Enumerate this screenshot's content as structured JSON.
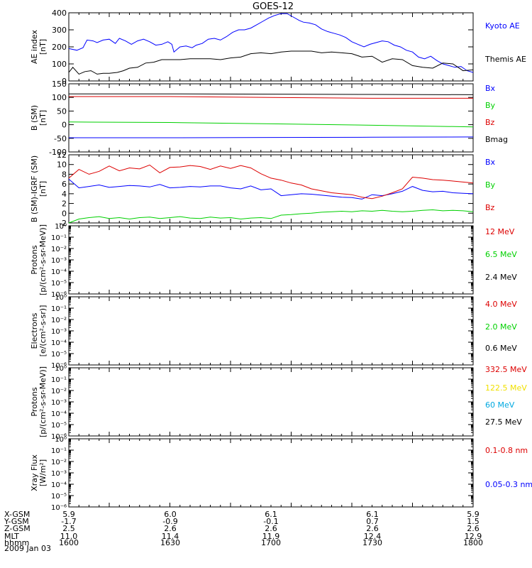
{
  "title": "GOES-12",
  "date_label": "2009 Jan 03",
  "colors": {
    "black": "#000000",
    "blue": "#0000ff",
    "red": "#dd0000",
    "green": "#00d000",
    "yellow": "#f0e000",
    "cyan": "#00a8e0"
  },
  "ephemeris": {
    "rows": [
      {
        "label": "X-GSM",
        "values": [
          "5.9",
          "6.0",
          "6.1",
          "6.1",
          "5.9"
        ]
      },
      {
        "label": "Y-GSM",
        "values": [
          "-1.7",
          "-0.9",
          "-0.1",
          "0.7",
          "1.5"
        ]
      },
      {
        "label": "Z-GSM",
        "values": [
          "2.5",
          "2.6",
          "2.6",
          "2.6",
          "2.6"
        ]
      },
      {
        "label": "MLT",
        "values": [
          "11.0",
          "11.4",
          "11.9",
          "12.4",
          "12.9"
        ]
      },
      {
        "label": "hhmm",
        "values": [
          "1600",
          "1630",
          "1700",
          "1730",
          "1800"
        ]
      }
    ]
  },
  "chart_data": [
    {
      "type": "line",
      "ylabel": [
        "AE index",
        "[nT]"
      ],
      "ylim": [
        0,
        400
      ],
      "yticks": [
        "0",
        "100",
        "200",
        "300",
        "400"
      ],
      "xlim": [
        1600,
        1800
      ],
      "series": [
        {
          "name": "Kyoto AE",
          "color": "blue",
          "x": [
            1600,
            1604,
            1607,
            1609,
            1612,
            1614,
            1617,
            1620,
            1623,
            1625,
            1628,
            1631,
            1634,
            1637,
            1640,
            1643,
            1646,
            1649,
            1651,
            1652,
            1655,
            1658,
            1661,
            1663,
            1666,
            1669,
            1672,
            1675,
            1678,
            1681,
            1684,
            1687,
            1690,
            1693,
            1696,
            1699,
            1702,
            1705,
            1708,
            1711,
            1714,
            1716,
            1719,
            1722,
            1725,
            1728,
            1731,
            1734,
            1737,
            1740,
            1743,
            1746,
            1749,
            1752,
            1755,
            1758,
            1761,
            1764,
            1767,
            1770,
            1773,
            1776,
            1779,
            1782,
            1785,
            1788,
            1791,
            1794,
            1797,
            1800
          ],
          "values": [
            190,
            180,
            195,
            240,
            235,
            225,
            240,
            245,
            220,
            250,
            235,
            215,
            235,
            245,
            230,
            210,
            215,
            230,
            215,
            170,
            200,
            205,
            195,
            210,
            220,
            245,
            250,
            240,
            260,
            285,
            300,
            300,
            310,
            330,
            350,
            370,
            385,
            395,
            395,
            375,
            355,
            345,
            340,
            330,
            305,
            290,
            280,
            270,
            255,
            230,
            215,
            200,
            215,
            225,
            235,
            230,
            210,
            200,
            180,
            170,
            140,
            130,
            145,
            120,
            100,
            90,
            80,
            85,
            60,
            50
          ]
        },
        {
          "name": "Themis AE",
          "color": "black",
          "x": [
            1600,
            1602,
            1605,
            1608,
            1611,
            1614,
            1617,
            1620,
            1624,
            1627,
            1630,
            1634,
            1638,
            1642,
            1646,
            1650,
            1655,
            1660,
            1665,
            1670,
            1675,
            1680,
            1685,
            1690,
            1695,
            1700,
            1705,
            1710,
            1715,
            1720,
            1725,
            1730,
            1735,
            1740,
            1745,
            1750,
            1755,
            1760,
            1765,
            1770,
            1775,
            1780,
            1785,
            1790,
            1795,
            1800
          ],
          "values": [
            50,
            80,
            40,
            55,
            60,
            40,
            45,
            45,
            50,
            60,
            75,
            80,
            105,
            110,
            125,
            125,
            125,
            130,
            130,
            130,
            125,
            135,
            140,
            160,
            165,
            160,
            170,
            175,
            175,
            175,
            165,
            170,
            165,
            160,
            140,
            145,
            110,
            130,
            125,
            90,
            80,
            75,
            105,
            100,
            60,
            65
          ]
        }
      ]
    },
    {
      "type": "line",
      "ylabel": [
        "B (SM)",
        "[nT]"
      ],
      "ylim": [
        -100,
        150
      ],
      "yticks": [
        "-100",
        "-50",
        "0",
        "50",
        "100",
        "150"
      ],
      "xlim": [
        1600,
        1800
      ],
      "series": [
        {
          "name": "Bx",
          "color": "blue",
          "x": [
            1600,
            1650,
            1700,
            1750,
            1800
          ],
          "values": [
            -48,
            -48,
            -47,
            -46,
            -45
          ]
        },
        {
          "name": "By",
          "color": "green",
          "x": [
            1600,
            1650,
            1700,
            1750,
            1800
          ],
          "values": [
            10,
            8,
            3,
            -2,
            -8
          ]
        },
        {
          "name": "Bz",
          "color": "red",
          "x": [
            1600,
            1650,
            1700,
            1750,
            1800
          ],
          "values": [
            103,
            103,
            100,
            97,
            97
          ]
        },
        {
          "name": "Bmag",
          "color": "black",
          "x": [
            1600,
            1650,
            1700,
            1750,
            1800
          ],
          "values": [
            113,
            113,
            112,
            111,
            110
          ]
        }
      ]
    },
    {
      "type": "line",
      "ylabel": [
        "B (SM)-IGRF (SM)",
        "[nT]"
      ],
      "ylim": [
        -2,
        12
      ],
      "yticks": [
        "-2",
        "0",
        "2",
        "4",
        "6",
        "8",
        "10",
        "12"
      ],
      "xlim": [
        1600,
        1800
      ],
      "series": [
        {
          "name": "Bx",
          "color": "blue",
          "x": [
            1600,
            1605,
            1610,
            1615,
            1620,
            1625,
            1630,
            1635,
            1640,
            1645,
            1650,
            1655,
            1660,
            1665,
            1670,
            1675,
            1680,
            1685,
            1690,
            1695,
            1700,
            1705,
            1710,
            1715,
            1720,
            1725,
            1730,
            1735,
            1740,
            1745,
            1750,
            1755,
            1760,
            1765,
            1770,
            1775,
            1780,
            1785,
            1790,
            1795,
            1800
          ],
          "values": [
            7,
            5.2,
            5.5,
            5.8,
            5.3,
            5.5,
            5.7,
            5.6,
            5.4,
            5.9,
            5.2,
            5.3,
            5.5,
            5.4,
            5.6,
            5.6,
            5.2,
            5.0,
            5.6,
            4.8,
            5.0,
            3.6,
            3.8,
            4.0,
            3.9,
            3.7,
            3.5,
            3.3,
            3.2,
            2.9,
            3.8,
            3.6,
            4.0,
            4.5,
            5.5,
            4.7,
            4.4,
            4.5,
            4.2,
            4.1,
            4.0
          ]
        },
        {
          "name": "By",
          "color": "green",
          "x": [
            1600,
            1605,
            1610,
            1615,
            1620,
            1625,
            1630,
            1635,
            1640,
            1645,
            1650,
            1655,
            1660,
            1665,
            1670,
            1675,
            1680,
            1685,
            1690,
            1695,
            1700,
            1705,
            1710,
            1715,
            1720,
            1725,
            1730,
            1735,
            1740,
            1745,
            1750,
            1755,
            1760,
            1765,
            1770,
            1775,
            1780,
            1785,
            1790,
            1795,
            1800
          ],
          "values": [
            -2,
            -1.2,
            -0.9,
            -0.7,
            -1.1,
            -0.9,
            -1.2,
            -0.9,
            -0.8,
            -1.1,
            -0.9,
            -0.7,
            -1.0,
            -1.1,
            -0.8,
            -1.0,
            -0.9,
            -1.2,
            -1.0,
            -0.9,
            -1.1,
            -0.4,
            -0.3,
            -0.1,
            0,
            0.2,
            0.3,
            0.4,
            0.3,
            0.5,
            0.4,
            0.6,
            0.4,
            0.3,
            0.4,
            0.6,
            0.7,
            0.5,
            0.6,
            0.5,
            0.3
          ]
        },
        {
          "name": "Bz",
          "color": "red",
          "x": [
            1600,
            1605,
            1610,
            1615,
            1620,
            1625,
            1630,
            1635,
            1640,
            1645,
            1650,
            1655,
            1660,
            1665,
            1670,
            1675,
            1680,
            1685,
            1690,
            1695,
            1700,
            1705,
            1710,
            1715,
            1720,
            1725,
            1730,
            1735,
            1740,
            1745,
            1750,
            1755,
            1760,
            1765,
            1770,
            1775,
            1780,
            1785,
            1790,
            1795,
            1800
          ],
          "values": [
            7.2,
            9.0,
            8.0,
            8.6,
            9.7,
            8.7,
            9.3,
            9.1,
            9.9,
            8.3,
            9.4,
            9.5,
            9.8,
            9.6,
            9.0,
            9.7,
            9.2,
            9.8,
            9.3,
            8.1,
            7.2,
            6.8,
            6.2,
            5.8,
            5.0,
            4.6,
            4.2,
            4.0,
            3.8,
            3.3,
            3.0,
            3.5,
            4.2,
            5.0,
            7.4,
            7.2,
            6.9,
            6.8,
            6.6,
            6.4,
            6.2
          ]
        }
      ]
    },
    {
      "type": "line",
      "ylabel": [
        "Protons",
        "[p/(cm²-s-sr-MeV)]"
      ],
      "scale": "log",
      "ylim": [
        1e-06,
        1
      ],
      "yticks": [
        "10⁰",
        "10⁻¹",
        "10⁻²",
        "10⁻³",
        "10⁻⁴",
        "10⁻⁵",
        "10⁻⁶"
      ],
      "xlim": [
        1600,
        1800
      ],
      "series": [
        {
          "name": "12 MeV",
          "color": "red",
          "x": [],
          "values": []
        },
        {
          "name": "6.5 MeV",
          "color": "green",
          "x": [],
          "values": []
        },
        {
          "name": "2.4 MeV",
          "color": "black",
          "x": [],
          "values": []
        }
      ]
    },
    {
      "type": "line",
      "ylabel": [
        "Electrons",
        "[e/(cm²-s-sr)]"
      ],
      "scale": "log",
      "ylim": [
        1e-06,
        1
      ],
      "yticks": [
        "10⁰",
        "10⁻¹",
        "10⁻²",
        "10⁻³",
        "10⁻⁴",
        "10⁻⁵",
        "10⁻⁶"
      ],
      "xlim": [
        1600,
        1800
      ],
      "series": [
        {
          "name": "4.0 MeV",
          "color": "red",
          "x": [],
          "values": []
        },
        {
          "name": "2.0 MeV",
          "color": "green",
          "x": [],
          "values": []
        },
        {
          "name": "0.6 MeV",
          "color": "black",
          "x": [],
          "values": []
        }
      ]
    },
    {
      "type": "line",
      "ylabel": [
        "Protons",
        "[p/(cm²-s-sr-MeV)]"
      ],
      "scale": "log",
      "ylim": [
        1e-06,
        1
      ],
      "yticks": [
        "10⁰",
        "10⁻¹",
        "10⁻²",
        "10⁻³",
        "10⁻⁴",
        "10⁻⁵",
        "10⁻⁶"
      ],
      "xlim": [
        1600,
        1800
      ],
      "series": [
        {
          "name": "332.5 MeV",
          "color": "red",
          "x": [],
          "values": []
        },
        {
          "name": "122.5 MeV",
          "color": "yellow",
          "x": [],
          "values": []
        },
        {
          "name": "60 MeV",
          "color": "cyan",
          "x": [],
          "values": []
        },
        {
          "name": "27.5 MeV",
          "color": "black",
          "x": [],
          "values": []
        }
      ]
    },
    {
      "type": "line",
      "ylabel": [
        "Xray Flux",
        "[W/m²]"
      ],
      "scale": "log",
      "ylim": [
        1e-06,
        1
      ],
      "yticks": [
        "10⁰",
        "10⁻¹",
        "10⁻²",
        "10⁻³",
        "10⁻⁴",
        "10⁻⁵",
        "10⁻⁶"
      ],
      "xlim": [
        1600,
        1800
      ],
      "series": [
        {
          "name": "0.1-0.8 nm",
          "color": "red",
          "x": [],
          "values": []
        },
        {
          "name": "0.05-0.3 nm",
          "color": "blue",
          "x": [],
          "values": []
        }
      ]
    }
  ]
}
